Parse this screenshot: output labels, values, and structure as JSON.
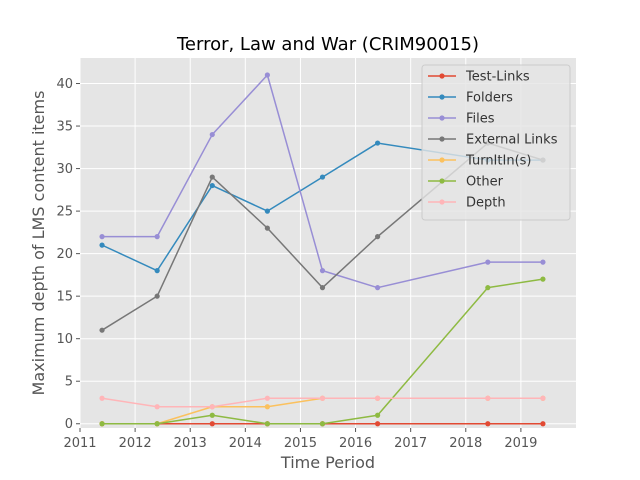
{
  "chart_data": {
    "type": "line",
    "title": "Terror, Law and War (CRIM90015)",
    "xlabel": "Time Period",
    "ylabel": "Maximum depth of LMS content items",
    "xlim": [
      2011.0,
      2020.0
    ],
    "ylim": [
      -0.5,
      43.0
    ],
    "xticks": [
      2011,
      2012,
      2013,
      2014,
      2015,
      2016,
      2017,
      2018,
      2019
    ],
    "yticks": [
      0,
      5,
      10,
      15,
      20,
      25,
      30,
      35,
      40
    ],
    "grid": true,
    "legend_position": "top-right",
    "x": [
      2011.4,
      2012.4,
      2013.4,
      2014.4,
      2015.4,
      2016.4,
      2018.4,
      2019.4
    ],
    "series": [
      {
        "name": "Test-Links",
        "color": "#e24a33",
        "values": [
          0,
          0,
          0,
          0,
          0,
          0,
          0,
          0
        ]
      },
      {
        "name": "Folders",
        "color": "#348abd",
        "values": [
          21,
          18,
          28,
          25,
          29,
          33,
          31,
          31
        ]
      },
      {
        "name": "Files",
        "color": "#988ed5",
        "values": [
          22,
          22,
          34,
          41,
          18,
          16,
          19,
          19
        ]
      },
      {
        "name": "External Links",
        "color": "#777777",
        "values": [
          11,
          15,
          29,
          23,
          16,
          22,
          33,
          31
        ]
      },
      {
        "name": "TurnItIn(s)",
        "color": "#fbc15e",
        "values": [
          0,
          0,
          2,
          2,
          3,
          3,
          3,
          3
        ]
      },
      {
        "name": "Other",
        "color": "#8eba42",
        "values": [
          0,
          0,
          1,
          0,
          0,
          1,
          16,
          17
        ]
      },
      {
        "name": "Depth",
        "color": "#ffb5b8",
        "values": [
          3,
          2,
          2,
          3,
          3,
          3,
          3,
          3
        ]
      }
    ]
  }
}
